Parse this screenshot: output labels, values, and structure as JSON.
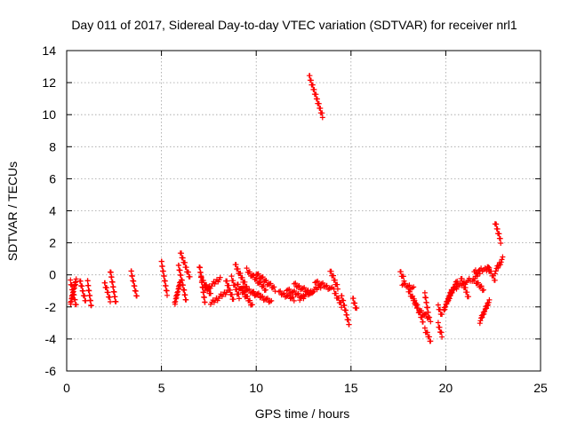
{
  "chart_data": {
    "type": "scatter",
    "title": "Day 011 of 2017, Sidereal Day-to-day VTEC variation (SDTVAR) for receiver nrl1",
    "xlabel": "GPS time / hours",
    "ylabel": "SDTVAR / TECUs",
    "xlim": [
      0,
      25
    ],
    "ylim": [
      -6,
      14
    ],
    "x_ticks": [
      0,
      5,
      10,
      15,
      20,
      25
    ],
    "y_ticks": [
      -6,
      -4,
      -2,
      0,
      2,
      4,
      6,
      8,
      10,
      12,
      14
    ],
    "x_tick_labels": [
      "0",
      "5",
      "10",
      "15",
      "20",
      "25"
    ],
    "y_tick_labels": [
      "-6",
      "-4",
      "-2",
      "0",
      "2",
      "4",
      "6",
      "8",
      "10",
      "12",
      "14"
    ],
    "grid": true,
    "marker": "plus",
    "series": [
      {
        "name": "SDTVAR",
        "color": "#ff0000",
        "segments": [
          {
            "x": [
              0.2,
              0.5
            ],
            "y": [
              -0.4,
              -1.9
            ]
          },
          {
            "x": [
              0.2,
              0.5
            ],
            "y": [
              -1.8,
              -0.3
            ]
          },
          {
            "x": [
              0.7,
              1.0
            ],
            "y": [
              -0.3,
              -1.7
            ]
          },
          {
            "x": [
              1.1,
              1.3
            ],
            "y": [
              -0.4,
              -2.0
            ]
          },
          {
            "x": [
              2.0,
              2.3
            ],
            "y": [
              -0.5,
              -1.6
            ]
          },
          {
            "x": [
              2.3,
              2.6
            ],
            "y": [
              0.3,
              -1.8
            ]
          },
          {
            "x": [
              3.4,
              3.7
            ],
            "y": [
              0.2,
              -1.4
            ]
          },
          {
            "x": [
              5.0,
              5.3
            ],
            "y": [
              0.8,
              -1.2
            ]
          },
          {
            "x": [
              5.7,
              6.0
            ],
            "y": [
              -1.8,
              -0.4
            ]
          },
          {
            "x": [
              5.9,
              6.3
            ],
            "y": [
              0.6,
              -1.6
            ]
          },
          {
            "x": [
              6.0,
              6.5
            ],
            "y": [
              1.4,
              -0.2
            ]
          },
          {
            "x": [
              7.0,
              7.3
            ],
            "y": [
              0.6,
              -1.8
            ]
          },
          {
            "x": [
              7.1,
              7.6
            ],
            "y": [
              -0.2,
              -1.2
            ]
          },
          {
            "x": [
              7.3,
              8.1
            ],
            "y": [
              -1.0,
              -0.2
            ]
          },
          {
            "x": [
              7.6,
              8.5
            ],
            "y": [
              -1.8,
              -1.0
            ]
          },
          {
            "x": [
              8.4,
              8.8
            ],
            "y": [
              -0.3,
              -1.6
            ]
          },
          {
            "x": [
              8.7,
              9.1
            ],
            "y": [
              -0.2,
              -1.4
            ]
          },
          {
            "x": [
              8.9,
              9.5
            ],
            "y": [
              0.6,
              -0.8
            ]
          },
          {
            "x": [
              9.0,
              9.8
            ],
            "y": [
              -0.6,
              -1.9
            ]
          },
          {
            "x": [
              9.2,
              10.2
            ],
            "y": [
              -0.8,
              -1.3
            ]
          },
          {
            "x": [
              9.5,
              10.5
            ],
            "y": [
              0.3,
              -0.9
            ]
          },
          {
            "x": [
              9.8,
              10.8
            ],
            "y": [
              -1.1,
              -1.7
            ]
          },
          {
            "x": [
              10.0,
              11.0
            ],
            "y": [
              0.1,
              -0.9
            ]
          },
          {
            "x": [
              11.2,
              12.0
            ],
            "y": [
              -1.1,
              -1.5
            ]
          },
          {
            "x": [
              11.6,
              12.5
            ],
            "y": [
              -0.9,
              -1.4
            ]
          },
          {
            "x": [
              12.0,
              13.0
            ],
            "y": [
              -0.6,
              -1.2
            ]
          },
          {
            "x": [
              12.3,
              13.4
            ],
            "y": [
              -1.5,
              -0.7
            ]
          },
          {
            "x": [
              12.8,
              13.5
            ],
            "y": [
              12.4,
              9.9
            ]
          },
          {
            "x": [
              13.1,
              14.0
            ],
            "y": [
              -0.4,
              -0.9
            ]
          },
          {
            "x": [
              13.9,
              14.3
            ],
            "y": [
              0.3,
              -0.8
            ]
          },
          {
            "x": [
              14.1,
              14.5
            ],
            "y": [
              -1.0,
              -1.9
            ]
          },
          {
            "x": [
              14.5,
              14.9
            ],
            "y": [
              -1.3,
              -3.1
            ]
          },
          {
            "x": [
              15.1,
              15.3
            ],
            "y": [
              -1.5,
              -2.2
            ]
          },
          {
            "x": [
              17.6,
              17.8
            ],
            "y": [
              0.2,
              -0.3
            ]
          },
          {
            "x": [
              17.7,
              18.3
            ],
            "y": [
              -0.6,
              -0.8
            ]
          },
          {
            "x": [
              18.0,
              18.5
            ],
            "y": [
              -0.9,
              -2.0
            ]
          },
          {
            "x": [
              18.3,
              18.8
            ],
            "y": [
              -1.5,
              -2.9
            ]
          },
          {
            "x": [
              18.6,
              19.2
            ],
            "y": [
              -2.2,
              -2.8
            ]
          },
          {
            "x": [
              18.9,
              19.1
            ],
            "y": [
              -1.2,
              -2.6
            ]
          },
          {
            "x": [
              18.9,
              19.2
            ],
            "y": [
              -3.4,
              -4.1
            ]
          },
          {
            "x": [
              19.6,
              19.8
            ],
            "y": [
              -3.1,
              -3.8
            ]
          },
          {
            "x": [
              19.6,
              19.8
            ],
            "y": [
              -2.0,
              -2.5
            ]
          },
          {
            "x": [
              19.9,
              20.3
            ],
            "y": [
              -2.2,
              -1.0
            ]
          },
          {
            "x": [
              20.1,
              20.6
            ],
            "y": [
              -1.6,
              -0.4
            ]
          },
          {
            "x": [
              20.5,
              21.3
            ],
            "y": [
              -0.8,
              -0.3
            ]
          },
          {
            "x": [
              20.8,
              21.2
            ],
            "y": [
              -0.2,
              -1.4
            ]
          },
          {
            "x": [
              21.4,
              21.8
            ],
            "y": [
              -0.4,
              0.2
            ]
          },
          {
            "x": [
              21.5,
              22.3
            ],
            "y": [
              0.2,
              0.4
            ]
          },
          {
            "x": [
              21.8,
              22.3
            ],
            "y": [
              -2.9,
              -1.6
            ]
          },
          {
            "x": [
              21.6,
              22.0
            ],
            "y": [
              -0.5,
              -0.9
            ]
          },
          {
            "x": [
              22.2,
              22.6
            ],
            "y": [
              0.5,
              -0.3
            ]
          },
          {
            "x": [
              22.6,
              23.0
            ],
            "y": [
              0.2,
              1.0
            ]
          },
          {
            "x": [
              22.6,
              22.9
            ],
            "y": [
              3.3,
              2.1
            ]
          }
        ]
      }
    ]
  }
}
